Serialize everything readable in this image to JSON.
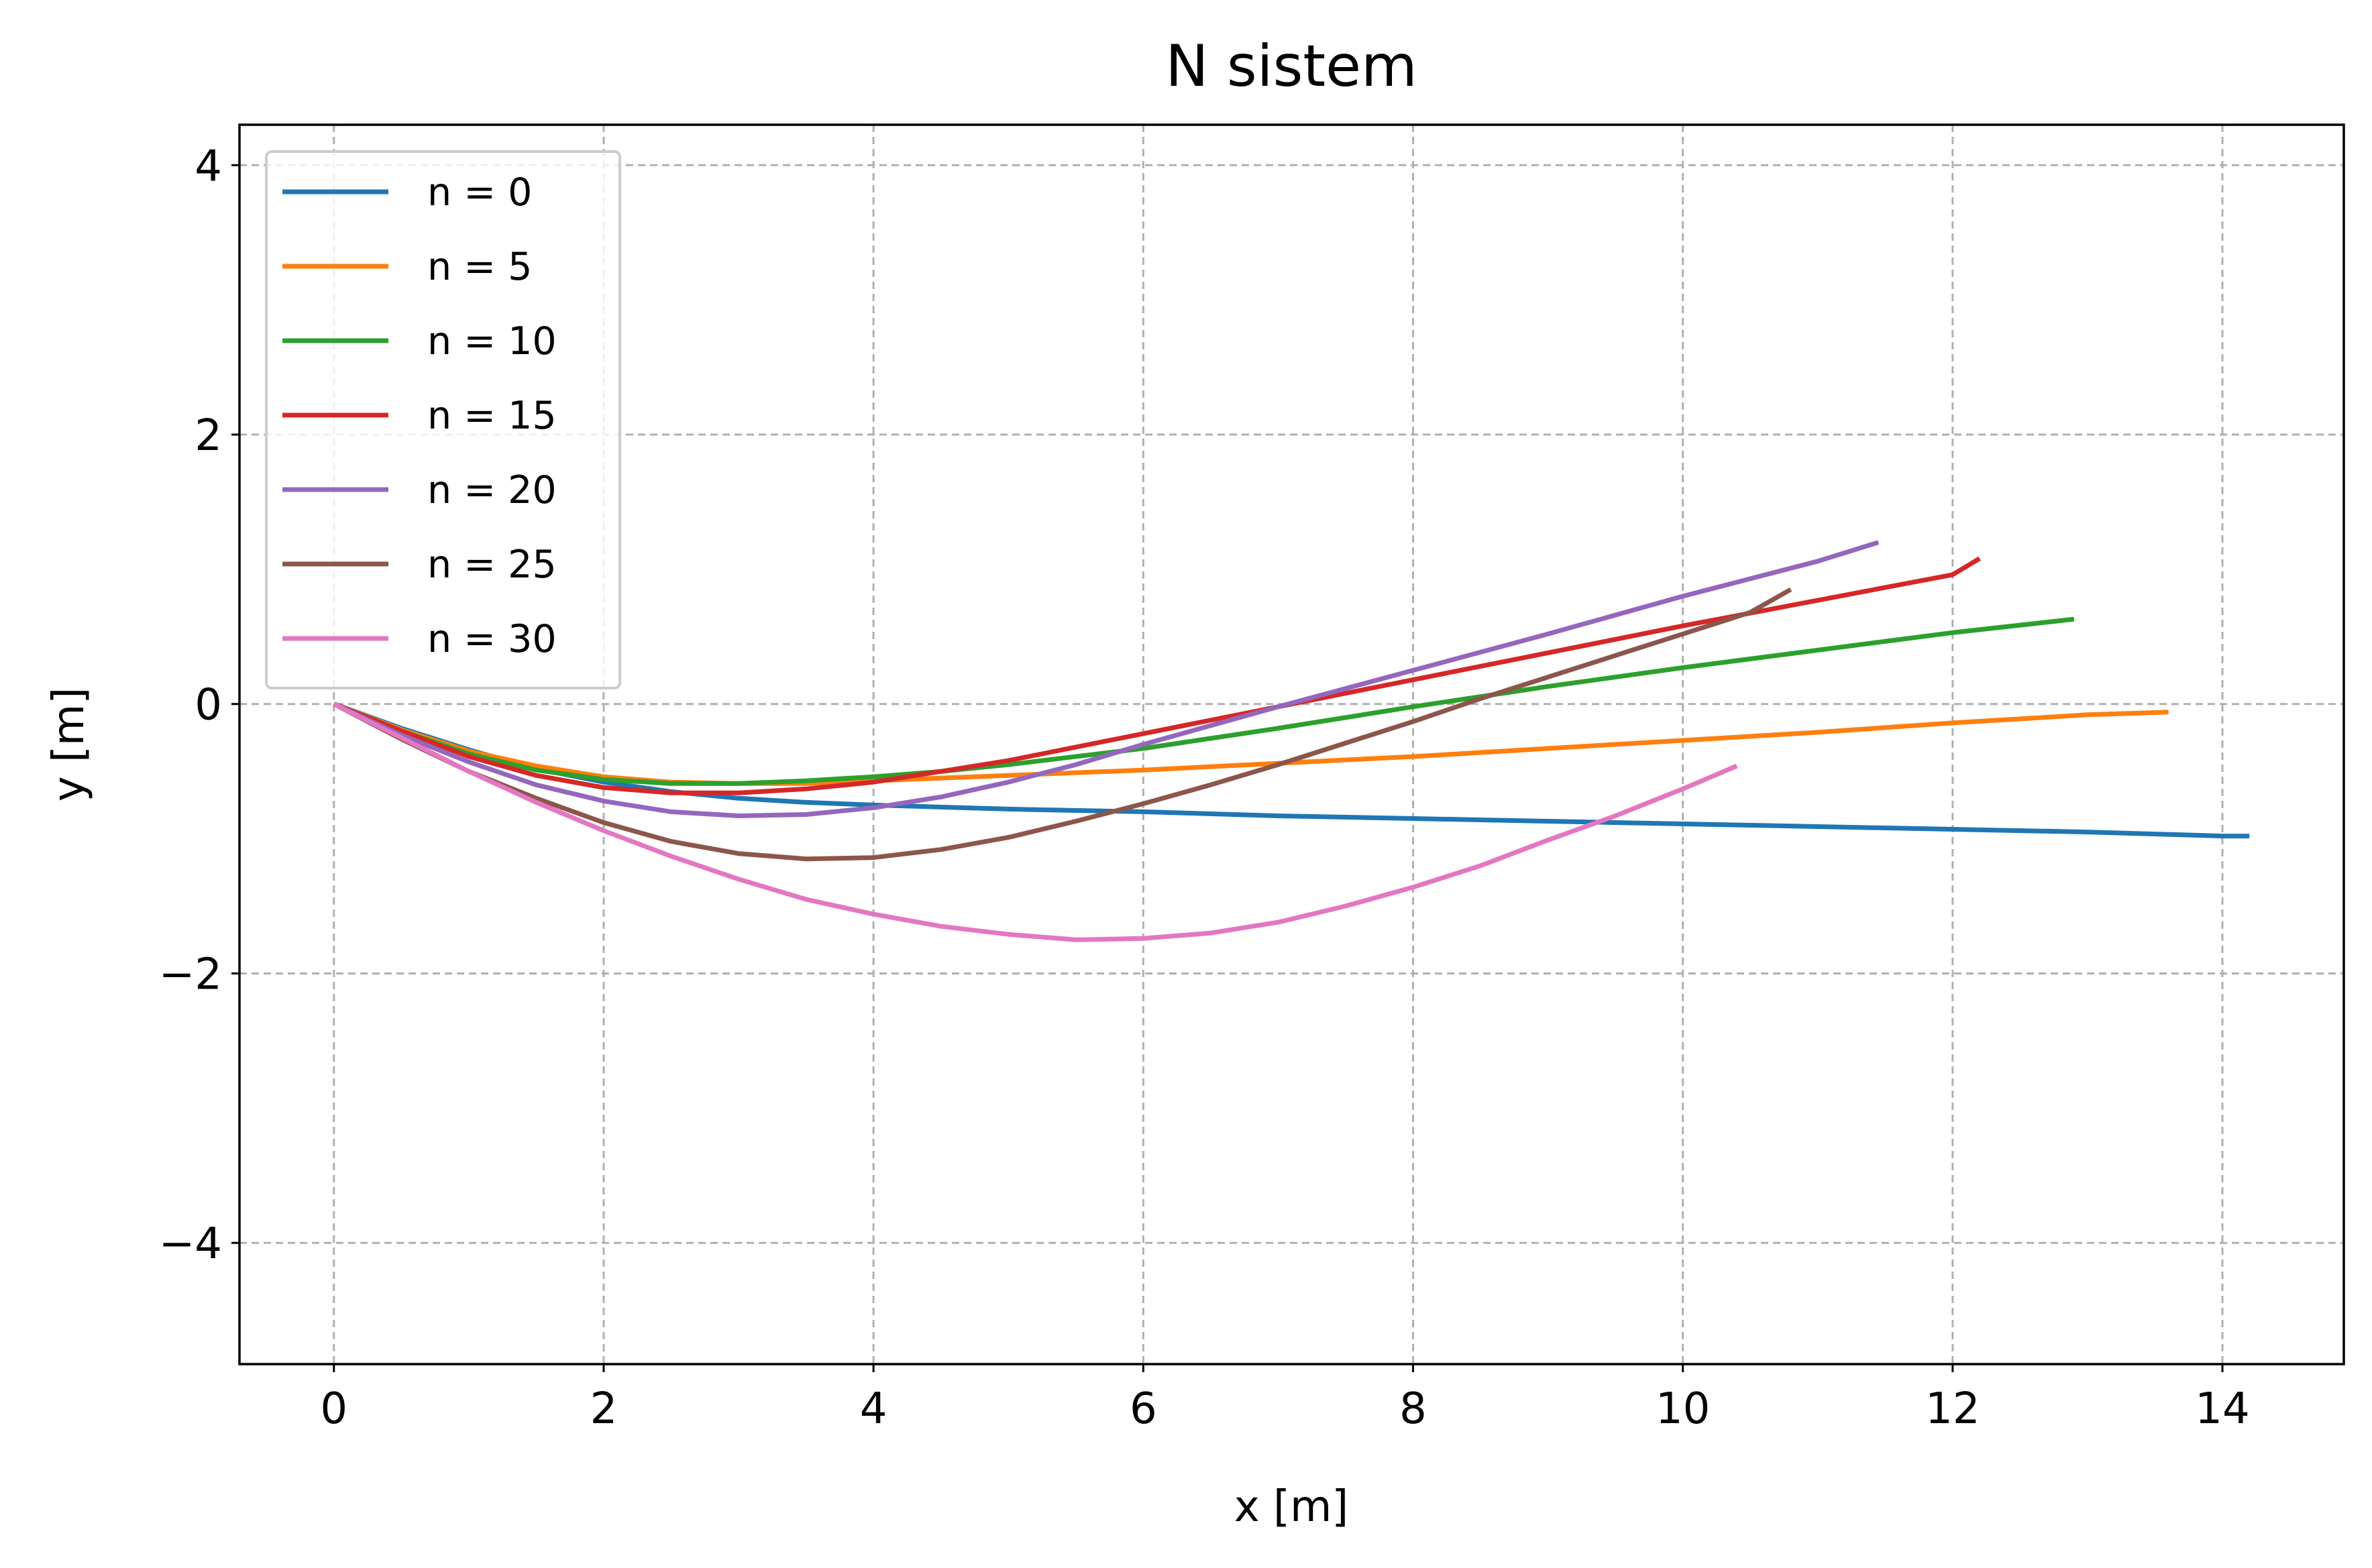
{
  "chart_data": {
    "type": "line",
    "title": "N sistem",
    "xlabel": "x [m]",
    "ylabel": "y [m]",
    "xlim": [
      -0.7,
      14.9
    ],
    "ylim": [
      -4.9,
      4.3
    ],
    "xticks": [
      0,
      2,
      4,
      6,
      8,
      10,
      12,
      14
    ],
    "yticks": [
      4,
      2,
      0,
      -2,
      -4
    ],
    "xtick_labels": [
      "0",
      "2",
      "4",
      "6",
      "8",
      "10",
      "12",
      "14"
    ],
    "ytick_labels": [
      "4",
      "2",
      "0",
      "−2",
      "−4"
    ],
    "grid": true,
    "legend_position": "upper-left",
    "series": [
      {
        "name": "n = 0",
        "color": "#1f77b4",
        "x": [
          0,
          0.5,
          1,
          1.5,
          2,
          2.5,
          3,
          3.5,
          4,
          5,
          6,
          7,
          8,
          9,
          10,
          11,
          12,
          13,
          14,
          14.2
        ],
        "y": [
          0,
          -0.18,
          -0.34,
          -0.48,
          -0.58,
          -0.65,
          -0.7,
          -0.73,
          -0.75,
          -0.78,
          -0.8,
          -0.83,
          -0.85,
          -0.87,
          -0.89,
          -0.91,
          -0.93,
          -0.95,
          -0.98,
          -0.98
        ]
      },
      {
        "name": "n = 5",
        "color": "#ff7f0e",
        "x": [
          0,
          0.5,
          1,
          1.5,
          2,
          2.5,
          3,
          3.5,
          4,
          5,
          6,
          7,
          8,
          9,
          10,
          11,
          12,
          13,
          13.6
        ],
        "y": [
          0,
          -0.19,
          -0.35,
          -0.46,
          -0.54,
          -0.58,
          -0.59,
          -0.59,
          -0.57,
          -0.53,
          -0.49,
          -0.44,
          -0.39,
          -0.33,
          -0.27,
          -0.21,
          -0.14,
          -0.08,
          -0.06
        ]
      },
      {
        "name": "n = 10",
        "color": "#2ca02c",
        "x": [
          0,
          0.5,
          1,
          1.5,
          2,
          2.5,
          3,
          3.5,
          4,
          4.5,
          5,
          6,
          7,
          8,
          9,
          10,
          11,
          12,
          12.9
        ],
        "y": [
          0,
          -0.2,
          -0.37,
          -0.49,
          -0.56,
          -0.59,
          -0.59,
          -0.57,
          -0.54,
          -0.5,
          -0.45,
          -0.33,
          -0.18,
          -0.02,
          0.13,
          0.27,
          0.4,
          0.53,
          0.63
        ]
      },
      {
        "name": "n = 15",
        "color": "#d62728",
        "x": [
          0,
          0.5,
          1,
          1.5,
          2,
          2.5,
          3,
          3.5,
          4,
          4.5,
          5,
          6,
          7,
          8,
          9,
          10,
          11,
          12,
          12.2
        ],
        "y": [
          0,
          -0.2,
          -0.39,
          -0.53,
          -0.62,
          -0.66,
          -0.66,
          -0.63,
          -0.58,
          -0.5,
          -0.42,
          -0.22,
          -0.02,
          0.18,
          0.38,
          0.58,
          0.77,
          0.96,
          1.08
        ]
      },
      {
        "name": "n = 20",
        "color": "#9467bd",
        "x": [
          0,
          0.5,
          1,
          1.5,
          2,
          2.5,
          3,
          3.5,
          4,
          4.5,
          5,
          5.5,
          6,
          7,
          8,
          9,
          10,
          11,
          11.45
        ],
        "y": [
          0,
          -0.23,
          -0.43,
          -0.6,
          -0.72,
          -0.8,
          -0.83,
          -0.82,
          -0.77,
          -0.69,
          -0.58,
          -0.45,
          -0.3,
          -0.02,
          0.25,
          0.52,
          0.8,
          1.06,
          1.2
        ]
      },
      {
        "name": "n = 25",
        "color": "#8c564b",
        "x": [
          0,
          0.5,
          1,
          1.5,
          2,
          2.5,
          3,
          3.5,
          4,
          4.5,
          5,
          5.5,
          6,
          6.5,
          7,
          7.5,
          8,
          8.5,
          9,
          9.5,
          10,
          10.5,
          10.8
        ],
        "y": [
          0,
          -0.26,
          -0.5,
          -0.7,
          -0.88,
          -1.02,
          -1.11,
          -1.15,
          -1.14,
          -1.08,
          -0.99,
          -0.87,
          -0.74,
          -0.6,
          -0.45,
          -0.29,
          -0.13,
          0.04,
          0.2,
          0.36,
          0.52,
          0.68,
          0.85
        ]
      },
      {
        "name": "n = 30",
        "color": "#e377c2",
        "x": [
          0,
          0.5,
          1,
          1.5,
          2,
          2.5,
          3,
          3.5,
          4,
          4.5,
          5,
          5.5,
          6,
          6.5,
          7,
          7.5,
          8,
          8.5,
          9,
          9.5,
          10,
          10.4
        ],
        "y": [
          0,
          -0.25,
          -0.5,
          -0.73,
          -0.94,
          -1.13,
          -1.3,
          -1.45,
          -1.56,
          -1.65,
          -1.71,
          -1.75,
          -1.74,
          -1.7,
          -1.62,
          -1.5,
          -1.36,
          -1.2,
          -1.01,
          -0.83,
          -0.63,
          -0.46
        ]
      }
    ]
  }
}
